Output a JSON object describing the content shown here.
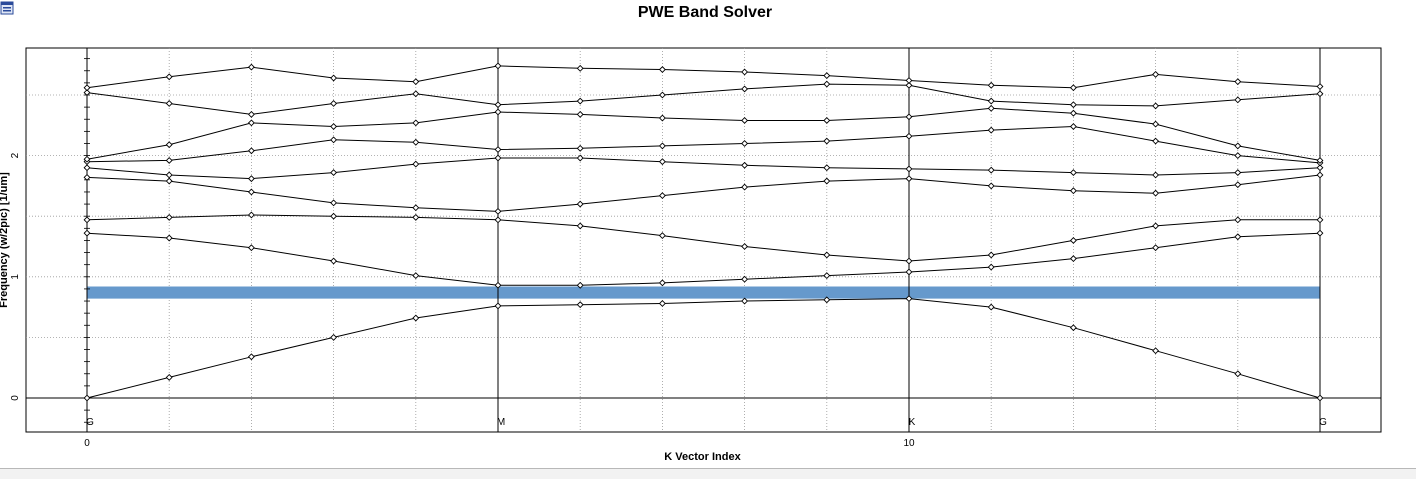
{
  "window": {
    "icon": "app-window-icon"
  },
  "chart_data": {
    "type": "line",
    "title": "PWE Band Solver",
    "xlabel": "K Vector Index",
    "ylabel": "Frequency (w/2pic) [1/um]",
    "xlim": [
      0,
      15
    ],
    "ylim": [
      -0.25,
      2.9
    ],
    "x_ticks": [
      0,
      10
    ],
    "y_ticks": [
      0,
      1,
      2
    ],
    "k_points": [
      {
        "label": "G",
        "x": 0
      },
      {
        "label": "M",
        "x": 5
      },
      {
        "label": "K",
        "x": 10
      },
      {
        "label": "G",
        "x": 15
      }
    ],
    "grid": true,
    "band_gap": {
      "from": 0.82,
      "to": 0.92,
      "color": "#6699cc"
    },
    "x": [
      0,
      1,
      2,
      3,
      4,
      5,
      6,
      7,
      8,
      9,
      10,
      11,
      12,
      13,
      14,
      15
    ],
    "series": [
      {
        "values": [
          0.0,
          0.17,
          0.34,
          0.5,
          0.66,
          0.76,
          0.77,
          0.78,
          0.8,
          0.81,
          0.82,
          0.75,
          0.58,
          0.39,
          0.2,
          0.0
        ]
      },
      {
        "values": [
          1.36,
          1.32,
          1.24,
          1.13,
          1.01,
          0.93,
          0.93,
          0.95,
          0.98,
          1.01,
          1.04,
          1.08,
          1.15,
          1.24,
          1.33,
          1.36
        ]
      },
      {
        "values": [
          1.47,
          1.49,
          1.51,
          1.5,
          1.49,
          1.47,
          1.42,
          1.34,
          1.25,
          1.18,
          1.13,
          1.18,
          1.3,
          1.42,
          1.47,
          1.47
        ]
      },
      {
        "values": [
          1.82,
          1.79,
          1.7,
          1.61,
          1.57,
          1.54,
          1.6,
          1.67,
          1.74,
          1.79,
          1.81,
          1.75,
          1.71,
          1.69,
          1.76,
          1.84
        ]
      },
      {
        "values": [
          1.9,
          1.84,
          1.81,
          1.86,
          1.93,
          1.98,
          1.98,
          1.95,
          1.92,
          1.9,
          1.89,
          1.88,
          1.86,
          1.84,
          1.86,
          1.9
        ]
      },
      {
        "values": [
          1.95,
          1.96,
          2.04,
          2.13,
          2.11,
          2.05,
          2.06,
          2.08,
          2.1,
          2.12,
          2.16,
          2.21,
          2.24,
          2.12,
          2.0,
          1.94
        ]
      },
      {
        "values": [
          1.97,
          2.09,
          2.27,
          2.24,
          2.27,
          2.36,
          2.34,
          2.31,
          2.29,
          2.29,
          2.32,
          2.39,
          2.35,
          2.26,
          2.08,
          1.96
        ]
      },
      {
        "values": [
          2.52,
          2.43,
          2.34,
          2.43,
          2.51,
          2.42,
          2.45,
          2.5,
          2.55,
          2.59,
          2.58,
          2.45,
          2.42,
          2.41,
          2.46,
          2.51
        ]
      },
      {
        "values": [
          2.56,
          2.65,
          2.73,
          2.64,
          2.61,
          2.74,
          2.72,
          2.71,
          2.69,
          2.66,
          2.62,
          2.58,
          2.56,
          2.67,
          2.61,
          2.57
        ]
      }
    ]
  }
}
